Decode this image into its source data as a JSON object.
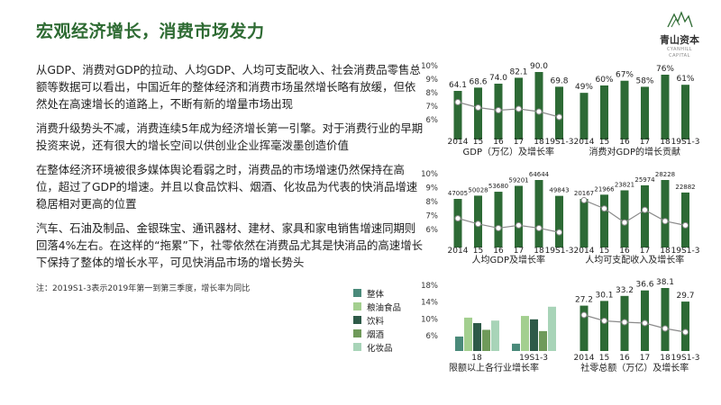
{
  "title": "宏观经济增长，消费市场发力",
  "logo": {
    "cn": "青山资本",
    "en1": "CYANHILL",
    "en2": "CAPITAL"
  },
  "paragraphs": [
    "从GDP、消费对GDP的拉动、人均GDP、人均可支配收入、社会消费品零售总额等数据可以看出，中国近年的整体经济和消费市场虽然增长略有放缓，但依然处在高速增长的道路上，不断有新的增量市场出现",
    "消费升级势头不减，消费连续5年成为经济增长第一引擎。对于消费行业的早期投资来说，还有很大的增长空间以供创业企业挥毫泼墨创造价值",
    "在整体经济环境被很多媒体舆论看弱之时，消费品的市场增速仍然保持在高位，超过了GDP的增速。并且以食品饮料、烟酒、化妆品为代表的快消品增速稳居相对更高的位置",
    "汽车、石油及制品、金银珠宝、通讯器材、建材、家具和家电销售增速同期则回落4%左右。在这样的“拖累”下，社零依然在消费品尤其是快消品的高速增长下保持了整体的增长水平，可见快消品市场的增长势头"
  ],
  "note": "注：2019S1-3表示2019年第一到第三季度，增长率为同比",
  "colors": {
    "accent": "#2e6b33",
    "bar": "#2d6a35",
    "line": "#8a8a8a"
  },
  "chart_data": [
    {
      "type": "bar+line",
      "title": "GDP（万亿）及增长率",
      "categories": [
        "2014",
        "15",
        "16",
        "17",
        "18",
        "19S1-3"
      ],
      "bar_values": [
        64.1,
        68.6,
        74.0,
        82.1,
        90.0,
        69.8
      ],
      "bar_labels": [
        "64.1",
        "68.6",
        "74.0",
        "82.1",
        "90.0",
        "69.8"
      ],
      "line_values": [
        7.3,
        6.9,
        6.7,
        6.8,
        6.6,
        6.2
      ],
      "y_ticks": [
        "10%",
        "9%",
        "8%",
        "7%",
        "6%"
      ],
      "ylim": [
        6,
        10
      ]
    },
    {
      "type": "bar",
      "title": "消费对GDP的增长贡献",
      "categories": [
        "2014",
        "15",
        "16",
        "17",
        "18",
        "19S1-3"
      ],
      "bar_values": [
        49,
        60,
        67,
        58,
        76,
        61
      ],
      "bar_labels": [
        "49%",
        "60%",
        "67%",
        "58%",
        "76%",
        "61%"
      ]
    },
    {
      "type": "bar+line",
      "title": "人均GDP及增长率",
      "categories": [
        "2014",
        "15",
        "16",
        "17",
        "18",
        "19S1-3"
      ],
      "bar_values": [
        47005,
        50028,
        53680,
        59201,
        64644,
        49843
      ],
      "bar_labels": [
        "47005",
        "50028",
        "53680",
        "59201",
        "64644",
        "49843"
      ],
      "line_values": [
        6.8,
        6.4,
        6.1,
        6.3,
        6.1,
        5.8
      ],
      "y_ticks": [
        "10%",
        "9%",
        "8%",
        "7%",
        "6%"
      ],
      "ylim": [
        6,
        10
      ]
    },
    {
      "type": "bar+line",
      "title": "人均可支配收入及增长率",
      "categories": [
        "2014",
        "15",
        "16",
        "17",
        "18",
        "19S1-3"
      ],
      "bar_values": [
        20167,
        21966,
        23821,
        25974,
        28228,
        22882
      ],
      "bar_labels": [
        "20167",
        "21966",
        "23821",
        "25974",
        "28228",
        "22882"
      ],
      "line_values": [
        8.1,
        7.5,
        6.5,
        7.4,
        6.6,
        6.3
      ],
      "ylim": [
        6,
        10
      ]
    },
    {
      "type": "grouped-bar",
      "title": "限额以上各行业增长率",
      "categories": [
        "18",
        "19S1-3"
      ],
      "series": [
        {
          "name": "整体",
          "color": "#4a8a7a",
          "values": [
            5.8,
            4.1
          ]
        },
        {
          "name": "粮油食品",
          "color": "#a3cf8f",
          "values": [
            10.3,
            10.7
          ]
        },
        {
          "name": "饮料",
          "color": "#2e5a48",
          "values": [
            9.0,
            9.9
          ]
        },
        {
          "name": "烟酒",
          "color": "#6f9a5a",
          "values": [
            7.4,
            7.1
          ]
        },
        {
          "name": "化妆品",
          "color": "#a8d4b8",
          "values": [
            9.6,
            12.9
          ]
        }
      ],
      "y_ticks": [
        "18%",
        "14%",
        "10%",
        "6%"
      ],
      "ylim": [
        2.3,
        18
      ]
    },
    {
      "type": "bar+line",
      "title": "社零总额（万亿）及增长率",
      "categories": [
        "2014",
        "15",
        "16",
        "17",
        "18",
        "19S1-3"
      ],
      "bar_values": [
        27.2,
        30.1,
        33.2,
        36.6,
        38.1,
        29.7
      ],
      "bar_labels": [
        "27.2",
        "30.1",
        "33.2",
        "36.6",
        "38.1",
        "29.7"
      ],
      "line_values": [
        12.0,
        10.7,
        10.4,
        10.2,
        9.0,
        8.2
      ],
      "ylim": [
        6,
        16
      ]
    }
  ]
}
